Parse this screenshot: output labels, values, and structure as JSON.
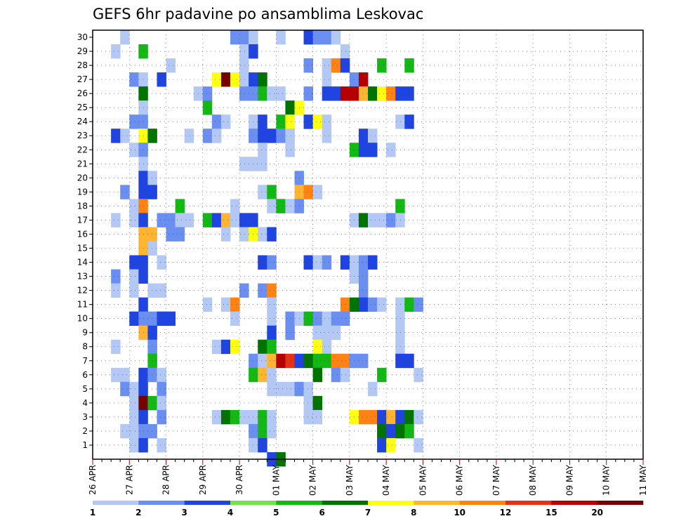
{
  "chart_data": {
    "type": "heatmap",
    "title": "GEFS 6hr padavine po ansamblima Leskovac",
    "y_labels": [
      "1",
      "2",
      "3",
      "4",
      "5",
      "6",
      "7",
      "8",
      "9",
      "10",
      "11",
      "12",
      "13",
      "14",
      "15",
      "16",
      "17",
      "18",
      "19",
      "20",
      "21",
      "22",
      "23",
      "24",
      "25",
      "26",
      "27",
      "28",
      "29",
      "30"
    ],
    "x_labels": [
      "26 APR",
      "27 APR",
      "28 APR",
      "29 APR",
      "30 APR",
      "01 MAY",
      "02 MAY",
      "03 MAY",
      "04 MAY",
      "05 MAY",
      "06 MAY",
      "07 MAY",
      "08 MAY",
      "09 MAY",
      "10 MAY",
      "11 MAY"
    ],
    "time_steps": 61,
    "steps_per_day": 4,
    "legend": {
      "labels": [
        "1",
        "2",
        "3",
        "4",
        "5",
        "6",
        "7",
        "8",
        "10",
        "12",
        "15",
        "20"
      ],
      "colors": [
        "#b4c8f5",
        "#6a8ff0",
        "#1f44e0",
        "#73e250",
        "#14b814",
        "#007300",
        "#ffff14",
        "#ffb432",
        "#ff8214",
        "#e63214",
        "#b40000",
        "#780000"
      ]
    },
    "cells": [
      [
        30,
        3,
        1
      ],
      [
        30,
        15,
        2
      ],
      [
        30,
        16,
        2
      ],
      [
        30,
        17,
        1
      ],
      [
        30,
        20,
        1
      ],
      [
        30,
        23,
        3
      ],
      [
        30,
        24,
        2
      ],
      [
        30,
        25,
        2
      ],
      [
        30,
        26,
        1
      ],
      [
        29,
        2,
        1
      ],
      [
        29,
        5,
        5
      ],
      [
        29,
        16,
        1
      ],
      [
        29,
        17,
        3
      ],
      [
        29,
        27,
        1
      ],
      [
        28,
        8,
        1
      ],
      [
        28,
        16,
        1
      ],
      [
        28,
        23,
        2
      ],
      [
        28,
        25,
        1
      ],
      [
        28,
        26,
        10
      ],
      [
        28,
        27,
        3
      ],
      [
        28,
        31,
        5
      ],
      [
        28,
        34,
        5
      ],
      [
        27,
        4,
        2
      ],
      [
        27,
        5,
        1
      ],
      [
        27,
        7,
        3
      ],
      [
        27,
        13,
        7
      ],
      [
        27,
        14,
        20
      ],
      [
        27,
        15,
        7
      ],
      [
        27,
        16,
        1
      ],
      [
        27,
        17,
        3
      ],
      [
        27,
        18,
        6
      ],
      [
        27,
        25,
        1
      ],
      [
        27,
        28,
        2
      ],
      [
        27,
        29,
        15
      ],
      [
        26,
        5,
        6
      ],
      [
        26,
        11,
        1
      ],
      [
        26,
        12,
        2
      ],
      [
        26,
        16,
        2
      ],
      [
        26,
        17,
        2
      ],
      [
        26,
        18,
        5
      ],
      [
        26,
        19,
        1
      ],
      [
        26,
        20,
        1
      ],
      [
        26,
        23,
        2
      ],
      [
        26,
        25,
        3
      ],
      [
        26,
        26,
        3
      ],
      [
        26,
        27,
        15
      ],
      [
        26,
        28,
        15
      ],
      [
        26,
        29,
        8
      ],
      [
        26,
        30,
        6
      ],
      [
        26,
        31,
        7
      ],
      [
        26,
        32,
        10
      ],
      [
        26,
        33,
        3
      ],
      [
        26,
        34,
        3
      ],
      [
        25,
        5,
        1
      ],
      [
        25,
        12,
        5
      ],
      [
        25,
        21,
        6
      ],
      [
        25,
        22,
        7
      ],
      [
        24,
        4,
        2
      ],
      [
        24,
        5,
        2
      ],
      [
        24,
        13,
        2
      ],
      [
        24,
        14,
        1
      ],
      [
        24,
        17,
        1
      ],
      [
        24,
        18,
        3
      ],
      [
        24,
        20,
        5
      ],
      [
        24,
        21,
        7
      ],
      [
        24,
        23,
        3
      ],
      [
        24,
        24,
        7
      ],
      [
        24,
        25,
        1
      ],
      [
        24,
        33,
        1
      ],
      [
        24,
        34,
        3
      ],
      [
        23,
        2,
        3
      ],
      [
        23,
        3,
        1
      ],
      [
        23,
        5,
        7
      ],
      [
        23,
        6,
        6
      ],
      [
        23,
        10,
        1
      ],
      [
        23,
        12,
        2
      ],
      [
        23,
        13,
        1
      ],
      [
        23,
        17,
        2
      ],
      [
        23,
        18,
        3
      ],
      [
        23,
        19,
        3
      ],
      [
        23,
        20,
        2
      ],
      [
        23,
        21,
        1
      ],
      [
        23,
        25,
        1
      ],
      [
        23,
        29,
        3
      ],
      [
        23,
        30,
        1
      ],
      [
        22,
        4,
        1
      ],
      [
        22,
        5,
        2
      ],
      [
        22,
        18,
        1
      ],
      [
        22,
        21,
        1
      ],
      [
        22,
        28,
        5
      ],
      [
        22,
        29,
        3
      ],
      [
        22,
        30,
        3
      ],
      [
        22,
        32,
        1
      ],
      [
        21,
        5,
        1
      ],
      [
        21,
        16,
        1
      ],
      [
        21,
        17,
        1
      ],
      [
        21,
        18,
        1
      ],
      [
        20,
        5,
        3
      ],
      [
        20,
        6,
        1
      ],
      [
        20,
        22,
        2
      ],
      [
        19,
        3,
        2
      ],
      [
        19,
        5,
        3
      ],
      [
        19,
        6,
        3
      ],
      [
        19,
        18,
        1
      ],
      [
        19,
        19,
        5
      ],
      [
        19,
        22,
        8
      ],
      [
        19,
        23,
        10
      ],
      [
        19,
        24,
        1
      ],
      [
        18,
        4,
        1
      ],
      [
        18,
        5,
        10
      ],
      [
        18,
        9,
        5
      ],
      [
        18,
        15,
        1
      ],
      [
        18,
        19,
        1
      ],
      [
        18,
        20,
        5
      ],
      [
        18,
        21,
        1
      ],
      [
        18,
        22,
        2
      ],
      [
        18,
        33,
        5
      ],
      [
        17,
        2,
        1
      ],
      [
        17,
        4,
        1
      ],
      [
        17,
        5,
        3
      ],
      [
        17,
        7,
        2
      ],
      [
        17,
        8,
        2
      ],
      [
        17,
        9,
        1
      ],
      [
        17,
        10,
        1
      ],
      [
        17,
        12,
        5
      ],
      [
        17,
        13,
        3
      ],
      [
        17,
        14,
        8
      ],
      [
        17,
        15,
        1
      ],
      [
        17,
        16,
        3
      ],
      [
        17,
        17,
        3
      ],
      [
        17,
        28,
        1
      ],
      [
        17,
        29,
        6
      ],
      [
        17,
        30,
        1
      ],
      [
        17,
        31,
        1
      ],
      [
        17,
        32,
        2
      ],
      [
        17,
        33,
        1
      ],
      [
        16,
        5,
        8
      ],
      [
        16,
        6,
        8
      ],
      [
        16,
        8,
        2
      ],
      [
        16,
        9,
        2
      ],
      [
        16,
        14,
        1
      ],
      [
        16,
        16,
        1
      ],
      [
        16,
        17,
        7
      ],
      [
        16,
        18,
        1
      ],
      [
        16,
        19,
        3
      ],
      [
        15,
        5,
        8
      ],
      [
        15,
        6,
        1
      ],
      [
        14,
        4,
        3
      ],
      [
        14,
        5,
        3
      ],
      [
        14,
        7,
        1
      ],
      [
        14,
        18,
        3
      ],
      [
        14,
        19,
        2
      ],
      [
        14,
        23,
        3
      ],
      [
        14,
        24,
        1
      ],
      [
        14,
        25,
        2
      ],
      [
        14,
        27,
        3
      ],
      [
        14,
        28,
        1
      ],
      [
        14,
        29,
        2
      ],
      [
        14,
        30,
        3
      ],
      [
        13,
        2,
        2
      ],
      [
        13,
        4,
        1
      ],
      [
        13,
        5,
        3
      ],
      [
        13,
        28,
        1
      ],
      [
        13,
        29,
        2
      ],
      [
        12,
        2,
        1
      ],
      [
        12,
        4,
        1
      ],
      [
        12,
        6,
        1
      ],
      [
        12,
        7,
        1
      ],
      [
        12,
        16,
        2
      ],
      [
        12,
        18,
        2
      ],
      [
        12,
        19,
        10
      ],
      [
        12,
        29,
        2
      ],
      [
        11,
        5,
        3
      ],
      [
        11,
        12,
        1
      ],
      [
        11,
        14,
        1
      ],
      [
        11,
        15,
        10
      ],
      [
        11,
        19,
        1
      ],
      [
        11,
        27,
        10
      ],
      [
        11,
        28,
        6
      ],
      [
        11,
        29,
        3
      ],
      [
        11,
        30,
        2
      ],
      [
        11,
        31,
        1
      ],
      [
        11,
        33,
        1
      ],
      [
        11,
        34,
        5
      ],
      [
        11,
        35,
        2
      ],
      [
        10,
        4,
        3
      ],
      [
        10,
        5,
        2
      ],
      [
        10,
        6,
        2
      ],
      [
        10,
        7,
        3
      ],
      [
        10,
        8,
        3
      ],
      [
        10,
        15,
        1
      ],
      [
        10,
        19,
        1
      ],
      [
        10,
        21,
        2
      ],
      [
        10,
        22,
        1
      ],
      [
        10,
        23,
        5
      ],
      [
        10,
        24,
        2
      ],
      [
        10,
        25,
        1
      ],
      [
        10,
        26,
        2
      ],
      [
        10,
        27,
        2
      ],
      [
        10,
        33,
        1
      ],
      [
        9,
        5,
        8
      ],
      [
        9,
        6,
        3
      ],
      [
        9,
        19,
        3
      ],
      [
        9,
        21,
        2
      ],
      [
        9,
        24,
        1
      ],
      [
        9,
        25,
        1
      ],
      [
        9,
        26,
        1
      ],
      [
        9,
        33,
        1
      ],
      [
        8,
        2,
        1
      ],
      [
        8,
        6,
        2
      ],
      [
        8,
        13,
        1
      ],
      [
        8,
        14,
        3
      ],
      [
        8,
        15,
        7
      ],
      [
        8,
        18,
        6
      ],
      [
        8,
        19,
        5
      ],
      [
        8,
        24,
        7
      ],
      [
        8,
        25,
        1
      ],
      [
        8,
        33,
        1
      ],
      [
        7,
        6,
        5
      ],
      [
        7,
        17,
        2
      ],
      [
        7,
        18,
        1
      ],
      [
        7,
        19,
        8
      ],
      [
        7,
        20,
        15
      ],
      [
        7,
        21,
        12
      ],
      [
        7,
        22,
        3
      ],
      [
        7,
        23,
        6
      ],
      [
        7,
        24,
        5
      ],
      [
        7,
        25,
        5
      ],
      [
        7,
        26,
        10
      ],
      [
        7,
        27,
        10
      ],
      [
        7,
        28,
        2
      ],
      [
        7,
        29,
        2
      ],
      [
        7,
        33,
        3
      ],
      [
        7,
        34,
        3
      ],
      [
        6,
        2,
        1
      ],
      [
        6,
        3,
        1
      ],
      [
        6,
        5,
        3
      ],
      [
        6,
        6,
        2
      ],
      [
        6,
        7,
        1
      ],
      [
        6,
        17,
        5
      ],
      [
        6,
        18,
        8
      ],
      [
        6,
        19,
        1
      ],
      [
        6,
        24,
        6
      ],
      [
        6,
        26,
        2
      ],
      [
        6,
        27,
        1
      ],
      [
        6,
        31,
        5
      ],
      [
        6,
        35,
        1
      ],
      [
        5,
        3,
        2
      ],
      [
        5,
        4,
        1
      ],
      [
        5,
        5,
        3
      ],
      [
        5,
        7,
        2
      ],
      [
        5,
        19,
        1
      ],
      [
        5,
        20,
        1
      ],
      [
        5,
        21,
        1
      ],
      [
        5,
        22,
        2
      ],
      [
        5,
        23,
        1
      ],
      [
        5,
        30,
        1
      ],
      [
        4,
        4,
        1
      ],
      [
        4,
        5,
        20
      ],
      [
        4,
        6,
        5
      ],
      [
        4,
        7,
        1
      ],
      [
        4,
        23,
        1
      ],
      [
        4,
        24,
        6
      ],
      [
        3,
        4,
        1
      ],
      [
        3,
        5,
        3
      ],
      [
        3,
        7,
        2
      ],
      [
        3,
        13,
        1
      ],
      [
        3,
        14,
        6
      ],
      [
        3,
        15,
        5
      ],
      [
        3,
        16,
        1
      ],
      [
        3,
        17,
        1
      ],
      [
        3,
        18,
        5
      ],
      [
        3,
        19,
        1
      ],
      [
        3,
        23,
        1
      ],
      [
        3,
        24,
        1
      ],
      [
        3,
        28,
        7
      ],
      [
        3,
        29,
        10
      ],
      [
        3,
        30,
        10
      ],
      [
        3,
        31,
        3
      ],
      [
        3,
        32,
        8
      ],
      [
        3,
        33,
        3
      ],
      [
        3,
        34,
        6
      ],
      [
        3,
        35,
        1
      ],
      [
        2,
        3,
        1
      ],
      [
        2,
        4,
        1
      ],
      [
        2,
        5,
        2
      ],
      [
        2,
        6,
        2
      ],
      [
        2,
        17,
        2
      ],
      [
        2,
        18,
        5
      ],
      [
        2,
        19,
        1
      ],
      [
        2,
        31,
        6
      ],
      [
        2,
        32,
        3
      ],
      [
        2,
        33,
        6
      ],
      [
        2,
        34,
        5
      ],
      [
        1,
        4,
        1
      ],
      [
        1,
        5,
        3
      ],
      [
        1,
        7,
        1
      ],
      [
        1,
        17,
        1
      ],
      [
        1,
        18,
        3
      ],
      [
        1,
        31,
        3
      ],
      [
        1,
        32,
        7
      ],
      [
        1,
        35,
        1
      ],
      [
        0,
        19,
        3
      ],
      [
        0,
        20,
        6
      ]
    ]
  }
}
